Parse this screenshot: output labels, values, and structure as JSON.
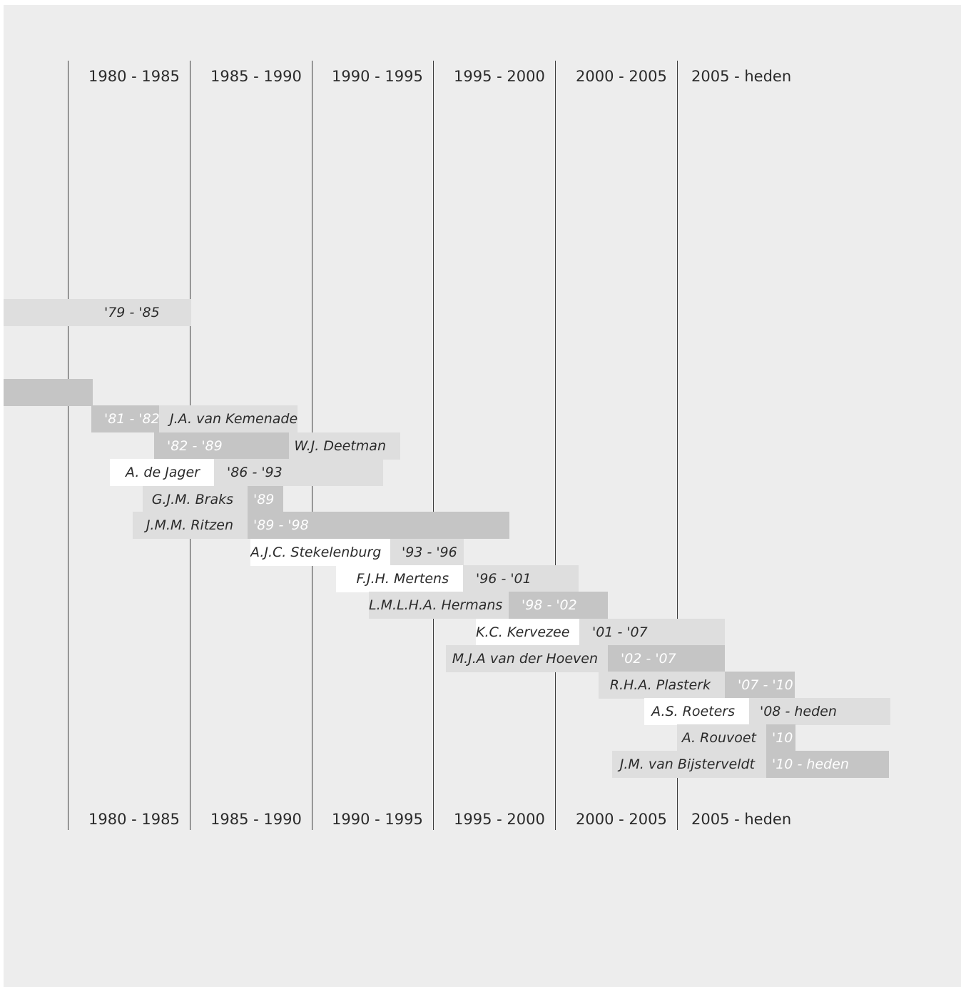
{
  "periods": [
    "1980 - 1985",
    "1985 - 1990",
    "1990 - 1995",
    "1995 - 2000",
    "2000 - 2005",
    "2005 - heden"
  ],
  "rows": [
    {
      "name": "",
      "years": "'79  - '85"
    },
    {
      "name": "",
      "years": ""
    },
    {
      "name": "J.A. van Kemenade",
      "years": "'81 - '82"
    },
    {
      "name": "W.J. Deetman",
      "years": "'82 - '89"
    },
    {
      "name": "A. de Jager",
      "years": "'86  - '93"
    },
    {
      "name": "G.J.M. Braks",
      "years": "'89"
    },
    {
      "name": "J.M.M. Ritzen",
      "years": "'89 - '98"
    },
    {
      "name": "A.J.C. Stekelenburg",
      "years": "'93 - '96"
    },
    {
      "name": "F.J.H. Mertens",
      "years": "'96 - '01"
    },
    {
      "name": "L.M.L.H.A. Hermans",
      "years": "'98 - '02"
    },
    {
      "name": "K.C. Kervezee",
      "years": "'01 - '07"
    },
    {
      "name": "M.J.A van der Hoeven",
      "years": "'02 - '07"
    },
    {
      "name": "R.H.A. Plasterk",
      "years": "'07 - '10"
    },
    {
      "name": "A.S. Roeters",
      "years": "'08 - heden"
    },
    {
      "name": "A. Rouvoet",
      "years": "'10"
    },
    {
      "name": "J.M. van Bijsterveldt",
      "years": "'10 - heden"
    }
  ],
  "colors": {
    "background": "#ededed",
    "white": "#ffffff",
    "light": "#dedede",
    "dark": "#c5c5c5",
    "line": "#3c3c3c",
    "text": "#2b2b2b"
  }
}
